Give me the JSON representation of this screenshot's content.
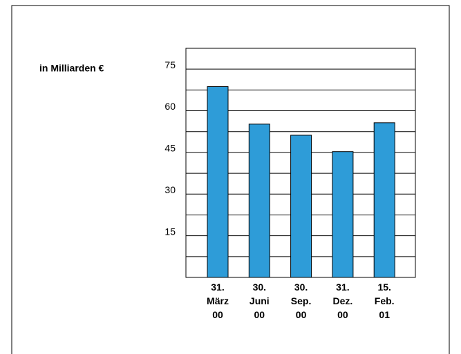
{
  "chart_data": {
    "type": "bar",
    "y_label": "in Milliarden €",
    "categories": [
      "31.\nMärz\n00",
      "30.\nJuni\n00",
      "30.\nSep.\n00",
      "31.\nDez.\n00",
      "15.\nFeb.\n01"
    ],
    "values": [
      68.7,
      55.2,
      51.2,
      45.3,
      55.7
    ],
    "color": "#2e9cd8",
    "ylim": [
      0,
      82.5
    ],
    "yticks": [
      15,
      30,
      45,
      60,
      75
    ],
    "yminor": [
      7.5,
      22.5,
      37.5,
      52.5,
      67.5
    ],
    "grid": true
  }
}
